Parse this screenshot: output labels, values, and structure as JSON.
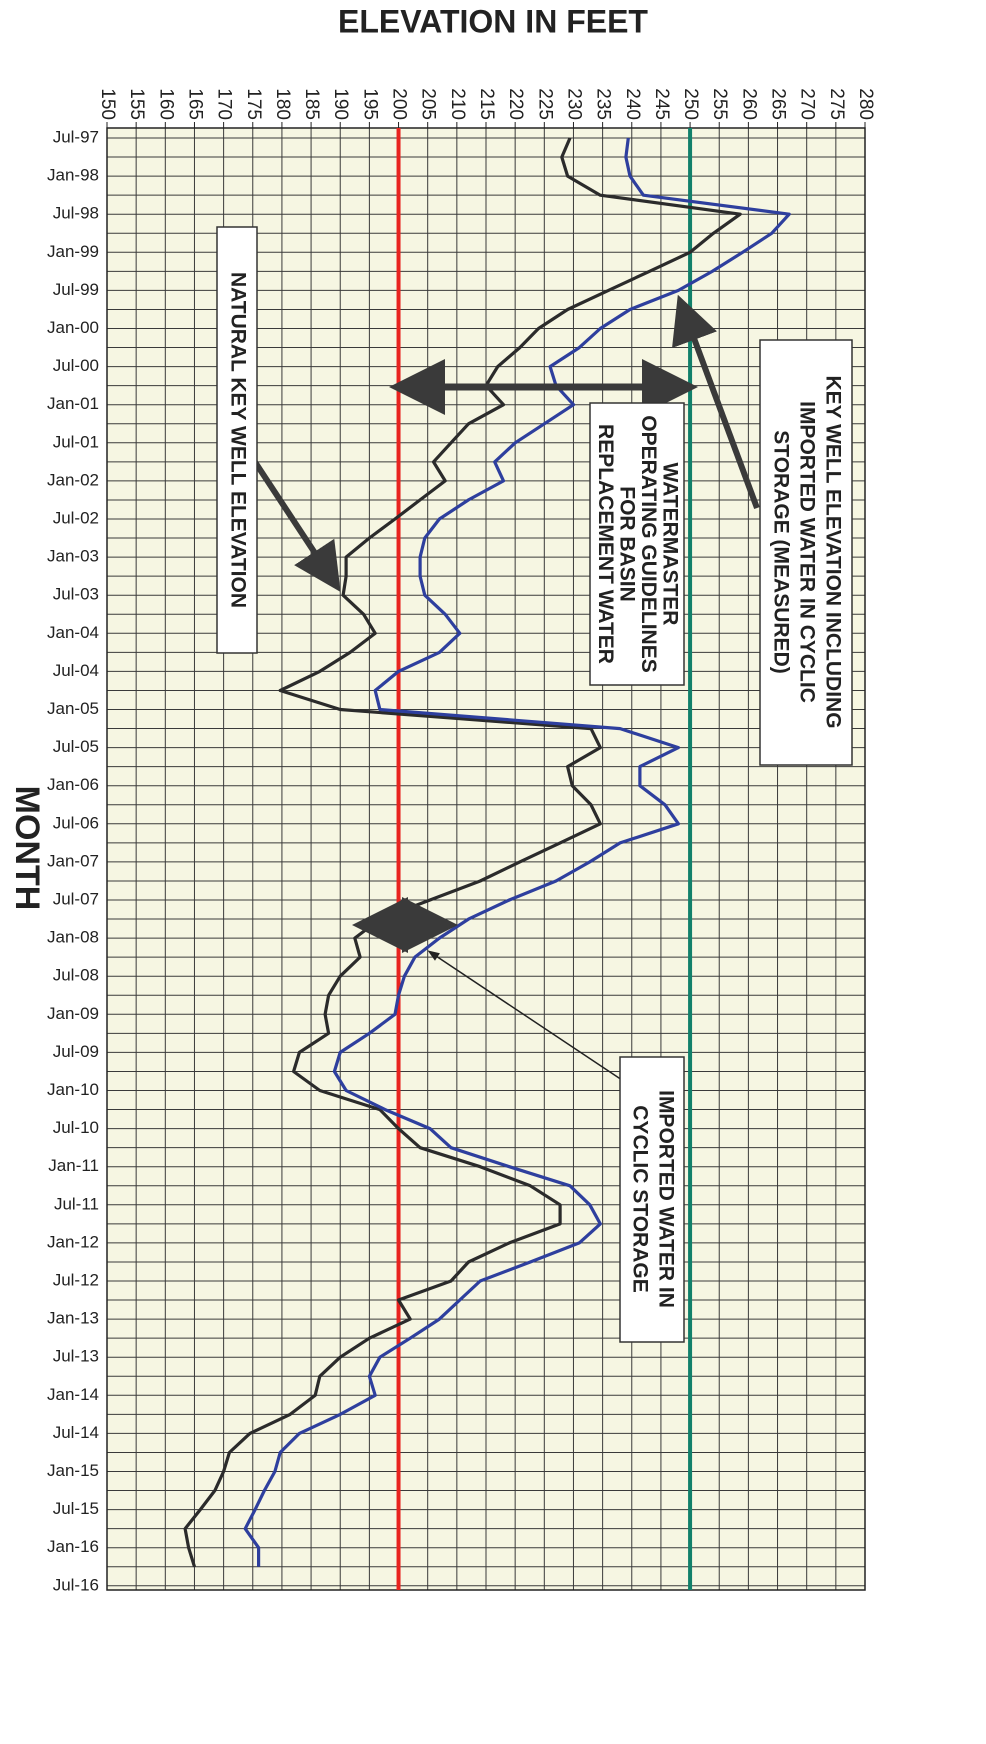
{
  "chart_data": {
    "type": "line",
    "title": "ELEVATION IN FEET",
    "y_label": "MONTH",
    "categories": [
      "Jul-97",
      null,
      "Jan-98",
      null,
      "Jul-98",
      null,
      "Jan-99",
      null,
      "Jul-99",
      null,
      "Jan-00",
      null,
      "Jul-00",
      null,
      "Jan-01",
      null,
      "Jul-01",
      null,
      "Jan-02",
      null,
      "Jul-02",
      null,
      "Jan-03",
      null,
      "Jul-03",
      null,
      "Jan-04",
      null,
      "Jul-04",
      null,
      "Jan-05",
      null,
      "Jul-05",
      null,
      "Jan-06",
      null,
      "Jul-06",
      null,
      "Jan-07",
      null,
      "Jul-07",
      null,
      "Jan-08",
      null,
      "Jul-08",
      null,
      "Jan-09",
      null,
      "Jul-09",
      null,
      "Jan-10",
      null,
      "Jul-10",
      null,
      "Jan-11",
      null,
      "Jul-11",
      null,
      "Jan-12",
      null,
      "Jul-12",
      null,
      "Jan-13",
      null,
      "Jul-13",
      null,
      "Jan-14",
      null,
      "Jul-14",
      null,
      "Jan-15",
      null,
      "Jul-15",
      null,
      "Jan-16",
      null,
      "Jul-16"
    ],
    "series": [
      {
        "name": [
          "NATURAL KEY WELL ELEVATION"
        ],
        "color": "#2b2b2b",
        "values": [
          229.4,
          228,
          229,
          234.6,
          258.6,
          254,
          250,
          243,
          236,
          229,
          224,
          220.8,
          217,
          215,
          218,
          212,
          209,
          206,
          208,
          203.7,
          199.4,
          195,
          191,
          191,
          190.5,
          194,
          196,
          191.7,
          186.5,
          179.7,
          190,
          233,
          234.6,
          229,
          229.8,
          233,
          234.6,
          227.7,
          220.8,
          214,
          205.4,
          196.8,
          192.5,
          193.4,
          190,
          188,
          187.4,
          188,
          183,
          182,
          186.5,
          196.8,
          200,
          203.7,
          214,
          222.6,
          227.7,
          227.7,
          219,
          212,
          209,
          200,
          202,
          195,
          190,
          186.5,
          185.7,
          181.4,
          174.5,
          171,
          170,
          168.5,
          166,
          163.4,
          164,
          165,
          null
        ]
      },
      {
        "name": [
          "KEY WELL ELEVATION INCLUDING",
          "IMPORTED WATER IN CYCLIC",
          "STORAGE (MEASURED)"
        ],
        "color": "#2e3f9e",
        "values": [
          239.4,
          239,
          239.7,
          242,
          267,
          264,
          259,
          253.8,
          248,
          239.7,
          234.6,
          231,
          226,
          227,
          230,
          225,
          220,
          216.5,
          218,
          212,
          207,
          204.5,
          203.7,
          203.7,
          204.5,
          208,
          210.5,
          207,
          200,
          196,
          196.8,
          238,
          248,
          241.4,
          241.4,
          245.7,
          248,
          238,
          232.8,
          227,
          219,
          212,
          207,
          202.8,
          201,
          200,
          199.4,
          195,
          190,
          189,
          191,
          197.7,
          205.4,
          209,
          219,
          229.4,
          232.8,
          234.6,
          231,
          222.6,
          214,
          210.5,
          207,
          202,
          196.8,
          195,
          196,
          190,
          183,
          179.7,
          178.8,
          177,
          175.4,
          173.7,
          176,
          176,
          null
        ]
      }
    ],
    "xlim": [
      150,
      280
    ],
    "xticks": [
      150,
      155,
      160,
      165,
      170,
      175,
      180,
      185,
      190,
      195,
      200,
      205,
      210,
      215,
      220,
      225,
      230,
      235,
      240,
      245,
      250,
      255,
      260,
      265,
      270,
      275,
      280
    ],
    "reference_lines": [
      {
        "value": 200,
        "color": "#e8231f"
      },
      {
        "value": 250,
        "color": "#11806a"
      }
    ],
    "annotations": [
      {
        "text": [
          "WATERMASTER",
          "OPERATING GUIDELINES",
          "FOR BASIN",
          "REPLACEMENT WATER"
        ]
      },
      {
        "text": [
          "IMPORTED WATER IN",
          "CYCLIC STORAGE"
        ]
      }
    ],
    "grid": true,
    "background": "#f6f6e2"
  }
}
